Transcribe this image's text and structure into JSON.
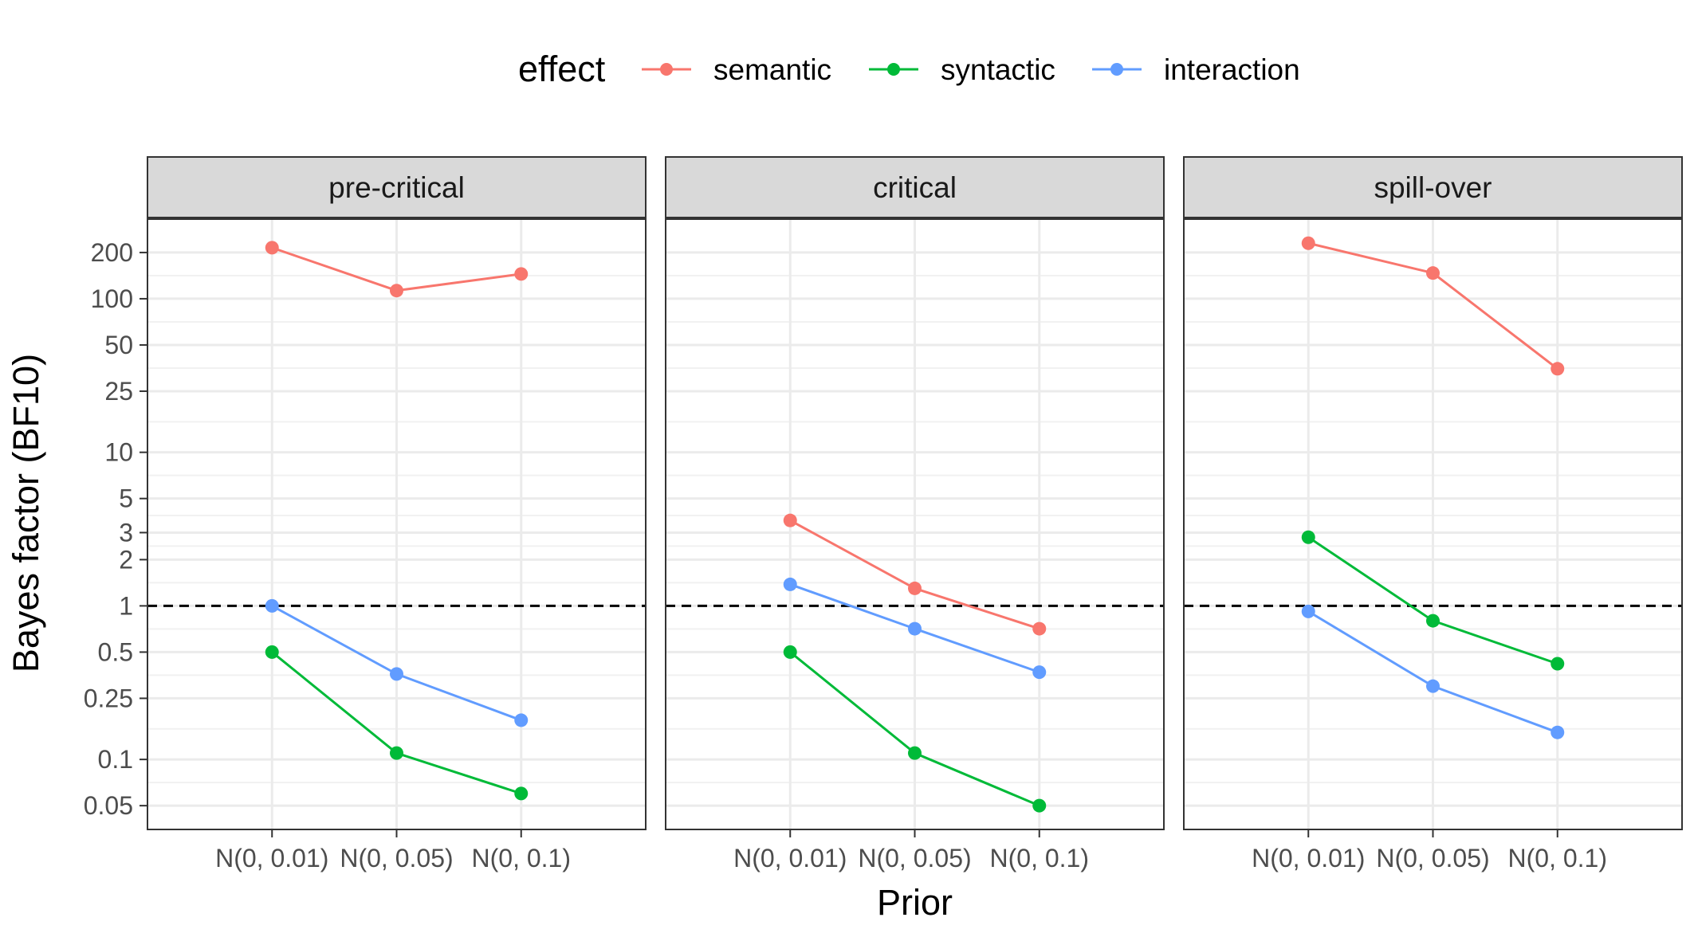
{
  "chart_data": {
    "type": "line",
    "xlabel": "Prior",
    "ylabel": "Bayes factor (BF10)",
    "yscale": "log",
    "ylim": [
      0.035,
      330
    ],
    "yticks": [
      0.05,
      0.1,
      0.25,
      0.5,
      1,
      2,
      3,
      5,
      10,
      25,
      50,
      100,
      200
    ],
    "ytick_labels": [
      "0.05",
      "0.1",
      "0.25",
      "0.5",
      "1",
      "2",
      "3",
      "5",
      "10",
      "25",
      "50",
      "100",
      "200"
    ],
    "categories": [
      "N(0, 0.01)",
      "N(0, 0.05)",
      "N(0, 0.1)"
    ],
    "reference_line": 1,
    "grid": true,
    "legend": {
      "title": "effect",
      "position": "top",
      "items": [
        {
          "name": "semantic",
          "color": "#F8766D"
        },
        {
          "name": "syntactic",
          "color": "#00BA38"
        },
        {
          "name": "interaction",
          "color": "#619CFF"
        }
      ]
    },
    "panels": [
      {
        "title": "pre-critical",
        "series": [
          {
            "name": "semantic",
            "values": [
              215,
              113,
              145
            ]
          },
          {
            "name": "syntactic",
            "values": [
              0.5,
              0.11,
              0.06
            ]
          },
          {
            "name": "interaction",
            "values": [
              1.0,
              0.36,
              0.18
            ]
          }
        ]
      },
      {
        "title": "critical",
        "series": [
          {
            "name": "semantic",
            "values": [
              3.6,
              1.3,
              0.71
            ]
          },
          {
            "name": "syntactic",
            "values": [
              0.5,
              0.11,
              0.05
            ]
          },
          {
            "name": "interaction",
            "values": [
              1.38,
              0.71,
              0.37
            ]
          }
        ]
      },
      {
        "title": "spill-over",
        "series": [
          {
            "name": "semantic",
            "values": [
              230,
              147,
              35
            ]
          },
          {
            "name": "syntactic",
            "values": [
              2.8,
              0.8,
              0.42
            ]
          },
          {
            "name": "interaction",
            "values": [
              0.92,
              0.3,
              0.15
            ]
          }
        ]
      }
    ]
  }
}
